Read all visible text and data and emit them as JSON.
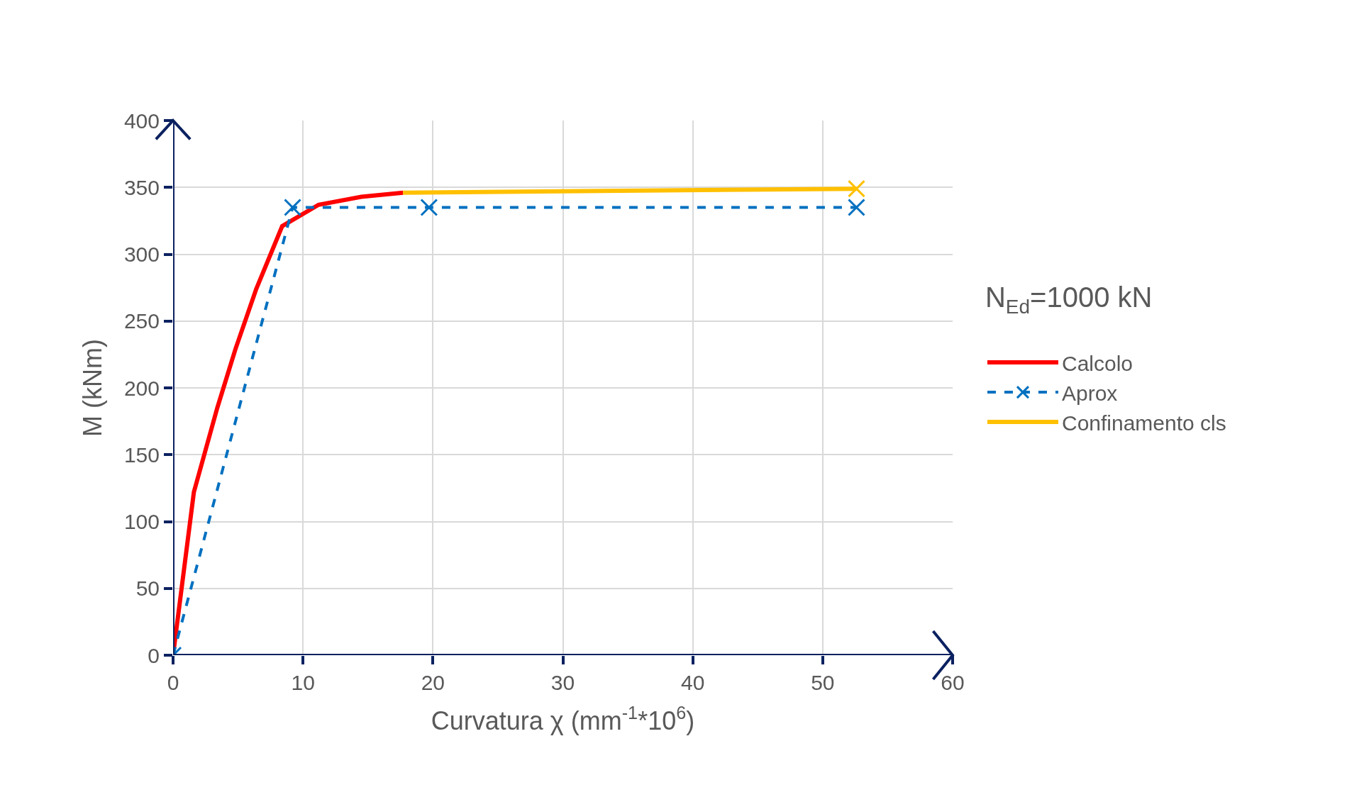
{
  "chart_data": {
    "type": "line",
    "xlabel": "Curvatura χ (mm$^{-1}$*10$^{6}$)",
    "ylabel": "M (kNm)",
    "legend_title": "N$_{Ed}$=1000 kN",
    "xlim": [
      0,
      60
    ],
    "xticks": [
      0,
      10,
      20,
      30,
      40,
      50,
      60
    ],
    "ylim": [
      0,
      400
    ],
    "yticks": [
      0,
      50,
      100,
      150,
      200,
      250,
      300,
      350,
      400
    ],
    "grid": true,
    "legend": "right",
    "series": [
      {
        "name": "Calcolo",
        "color": "#ff0000",
        "x": [
          0,
          1.6,
          3.4,
          4.8,
          6.4,
          8.4,
          11.2,
          14.5,
          17.7
        ],
        "values": [
          0,
          122,
          185,
          229,
          274,
          321,
          337,
          343,
          346
        ],
        "marker": "none",
        "line_style": "solid"
      },
      {
        "name": "Aprox",
        "color": "#0070c0",
        "x": [
          0,
          9.2,
          19.7,
          52.6
        ],
        "values": [
          0,
          335,
          335,
          335
        ],
        "marker": "cross",
        "line_style": "dashed"
      },
      {
        "name": "Confinamento cls",
        "color": "#ffc000",
        "x": [
          17.7,
          52.6
        ],
        "values": [
          346,
          349
        ],
        "line_style": "solid"
      },
      {
        "type": "scatter",
        "color": "#ffc000",
        "x": [
          52.6
        ],
        "values": [
          349
        ],
        "marker": "cross"
      }
    ]
  }
}
